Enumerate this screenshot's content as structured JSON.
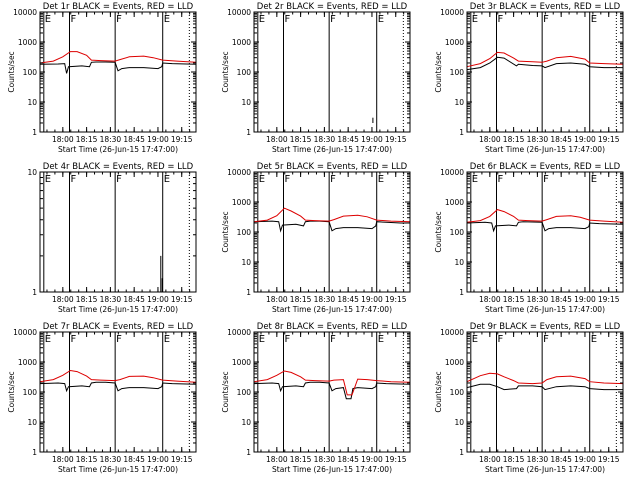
{
  "figure": {
    "colors": {
      "events": "#000000",
      "lld": "#dd0000",
      "axes": "#000000",
      "background": "#ffffff"
    }
  },
  "chart_data": [
    {
      "type": "line",
      "yscale": "log",
      "ylim": [
        1,
        10000
      ],
      "xlim": [
        17.76,
        19.4
      ],
      "title": "Det 1r BLACK = Events, RED = LLD",
      "ylabel": "Counts/sec",
      "xlabel": "Start Time (26-Jun-15 17:47:00)",
      "yticks": [
        "1",
        "10",
        "100",
        "1000",
        "10000"
      ],
      "xticks": [
        "18:00",
        "18:15",
        "18:30",
        "18:45",
        "19:00",
        "19:15"
      ],
      "markers": [
        {
          "t": 17.8,
          "label": "E"
        },
        {
          "t": 18.07,
          "label": "F"
        },
        {
          "t": 18.55,
          "label": "F"
        },
        {
          "t": 19.05,
          "label": "E"
        }
      ],
      "dotted": [
        19.33
      ],
      "series": [
        {
          "name": "BLACK = Events",
          "x": [
            17.76,
            17.95,
            18.02,
            18.04,
            18.06,
            18.2,
            18.28,
            18.3,
            18.35,
            18.45,
            18.55,
            18.58,
            18.62,
            18.7,
            18.85,
            19.0,
            19.04,
            19.05,
            19.15,
            19.3,
            19.4
          ],
          "y": [
            180,
            185,
            190,
            90,
            150,
            160,
            150,
            210,
            215,
            215,
            210,
            110,
            130,
            140,
            140,
            130,
            150,
            200,
            190,
            185,
            180
          ]
        },
        {
          "name": "RED = LLD",
          "x": [
            17.76,
            17.9,
            18.0,
            18.08,
            18.15,
            18.25,
            18.3,
            18.4,
            18.55,
            18.6,
            18.7,
            18.85,
            18.95,
            19.05,
            19.2,
            19.4
          ],
          "y": [
            200,
            230,
            320,
            480,
            480,
            360,
            250,
            240,
            230,
            260,
            320,
            340,
            300,
            250,
            230,
            210
          ]
        }
      ]
    },
    {
      "type": "line",
      "yscale": "log",
      "ylim": [
        1,
        10000
      ],
      "xlim": [
        17.76,
        19.4
      ],
      "title": "Det 2r BLACK = Events, RED = LLD",
      "ylabel": "Counts/sec",
      "xlabel": "Start Time (26-Jun-15 17:47:00)",
      "yticks": [
        "1",
        "10",
        "100",
        "1000",
        "10000"
      ],
      "xticks": [
        "18:00",
        "18:15",
        "18:30",
        "18:45",
        "19:00",
        "19:15"
      ],
      "markers": [
        {
          "t": 17.8,
          "label": "E"
        },
        {
          "t": 18.07,
          "label": "F"
        },
        {
          "t": 18.55,
          "label": "F"
        },
        {
          "t": 19.05,
          "label": "E"
        }
      ],
      "dotted": [
        19.33
      ],
      "series": [
        {
          "name": "BLACK = Events",
          "x": [
            19.01,
            19.01
          ],
          "y": [
            2,
            3
          ]
        }
      ]
    },
    {
      "type": "line",
      "yscale": "log",
      "ylim": [
        1,
        10000
      ],
      "xlim": [
        17.76,
        19.4
      ],
      "title": "Det 3r BLACK = Events, RED = LLD",
      "ylabel": "Counts/sec",
      "xlabel": "Start Time (26-Jun-15 17:47:00)",
      "yticks": [
        "1",
        "10",
        "100",
        "1000",
        "10000"
      ],
      "xticks": [
        "18:00",
        "18:15",
        "18:30",
        "18:45",
        "19:00",
        "19:15"
      ],
      "markers": [
        {
          "t": 17.8,
          "label": "E"
        },
        {
          "t": 18.07,
          "label": "F"
        },
        {
          "t": 18.55,
          "label": "F"
        },
        {
          "t": 19.05,
          "label": "E"
        }
      ],
      "dotted": [
        19.33
      ],
      "series": [
        {
          "name": "BLACK = Events",
          "x": [
            17.76,
            17.9,
            18.0,
            18.08,
            18.15,
            18.28,
            18.3,
            18.45,
            18.55,
            18.58,
            18.7,
            18.85,
            19.0,
            19.05,
            19.2,
            19.4
          ],
          "y": [
            120,
            140,
            200,
            310,
            290,
            160,
            180,
            165,
            160,
            140,
            190,
            200,
            180,
            150,
            140,
            140
          ]
        },
        {
          "name": "RED = LLD",
          "x": [
            17.76,
            17.9,
            18.0,
            18.08,
            18.15,
            18.25,
            18.3,
            18.45,
            18.55,
            18.6,
            18.7,
            18.85,
            19.0,
            19.05,
            19.2,
            19.4
          ],
          "y": [
            150,
            190,
            280,
            450,
            430,
            290,
            230,
            220,
            210,
            230,
            300,
            330,
            270,
            200,
            190,
            180
          ]
        }
      ]
    },
    {
      "type": "line",
      "yscale": "log",
      "ylim": [
        1,
        10
      ],
      "xlim": [
        17.76,
        19.4
      ],
      "title": "Det 4r BLACK = Events, RED = LLD",
      "ylabel": "",
      "xlabel": "Start Time (26-Jun-15 17:47:00)",
      "yticks": [
        "1",
        "10"
      ],
      "xticks": [
        "18:00",
        "18:15",
        "18:30",
        "18:45",
        "19:00",
        "19:15"
      ],
      "markers": [
        {
          "t": 17.8,
          "label": "E"
        },
        {
          "t": 18.07,
          "label": "F"
        },
        {
          "t": 18.55,
          "label": "F"
        },
        {
          "t": 19.05,
          "label": "E"
        }
      ],
      "dotted": [
        19.33
      ],
      "series": [
        {
          "name": "BLACK = Events",
          "x": [
            19.03,
            19.03,
            19.03,
            19.045,
            19.045
          ],
          "y": [
            1,
            2,
            1,
            1,
            1.3
          ]
        }
      ]
    },
    {
      "type": "line",
      "yscale": "log",
      "ylim": [
        1,
        10000
      ],
      "xlim": [
        17.76,
        19.4
      ],
      "title": "Det 5r BLACK = Events, RED = LLD",
      "ylabel": "Counts/sec",
      "xlabel": "Start Time (26-Jun-15 17:47:00)",
      "yticks": [
        "1",
        "10",
        "100",
        "1000",
        "10000"
      ],
      "xticks": [
        "18:00",
        "18:15",
        "18:30",
        "18:45",
        "19:00",
        "19:15"
      ],
      "markers": [
        {
          "t": 17.8,
          "label": "E"
        },
        {
          "t": 18.07,
          "label": "F"
        },
        {
          "t": 18.55,
          "label": "F"
        },
        {
          "t": 19.05,
          "label": "E"
        }
      ],
      "dotted": [
        19.33
      ],
      "series": [
        {
          "name": "BLACK = Events",
          "x": [
            17.76,
            17.95,
            18.02,
            18.04,
            18.06,
            18.2,
            18.28,
            18.3,
            18.35,
            18.45,
            18.55,
            18.58,
            18.62,
            18.7,
            18.85,
            19.0,
            19.04,
            19.05,
            19.15,
            19.3,
            19.4
          ],
          "y": [
            220,
            230,
            220,
            110,
            170,
            180,
            160,
            220,
            230,
            230,
            220,
            110,
            130,
            140,
            140,
            130,
            160,
            220,
            210,
            200,
            200
          ]
        },
        {
          "name": "RED = LLD",
          "x": [
            17.76,
            17.9,
            18.0,
            18.08,
            18.15,
            18.25,
            18.3,
            18.4,
            18.55,
            18.6,
            18.7,
            18.85,
            18.95,
            19.05,
            19.2,
            19.4
          ],
          "y": [
            220,
            250,
            350,
            620,
            500,
            340,
            250,
            240,
            230,
            260,
            340,
            360,
            320,
            250,
            230,
            220
          ]
        }
      ]
    },
    {
      "type": "line",
      "yscale": "log",
      "ylim": [
        1,
        10000
      ],
      "xlim": [
        17.76,
        19.4
      ],
      "title": "Det 6r BLACK = Events, RED = LLD",
      "ylabel": "Counts/sec",
      "xlabel": "Start Time (26-Jun-15 17:47:00)",
      "yticks": [
        "1",
        "10",
        "100",
        "1000",
        "10000"
      ],
      "xticks": [
        "18:00",
        "18:15",
        "18:30",
        "18:45",
        "19:00",
        "19:15"
      ],
      "markers": [
        {
          "t": 17.8,
          "label": "E"
        },
        {
          "t": 18.07,
          "label": "F"
        },
        {
          "t": 18.55,
          "label": "F"
        },
        {
          "t": 19.05,
          "label": "E"
        }
      ],
      "dotted": [
        19.33
      ],
      "series": [
        {
          "name": "BLACK = Events",
          "x": [
            17.76,
            17.95,
            18.02,
            18.04,
            18.06,
            18.2,
            18.28,
            18.3,
            18.35,
            18.45,
            18.55,
            18.58,
            18.62,
            18.7,
            18.85,
            19.0,
            19.04,
            19.05,
            19.15,
            19.3,
            19.4
          ],
          "y": [
            200,
            210,
            200,
            110,
            160,
            170,
            160,
            210,
            220,
            215,
            210,
            110,
            130,
            140,
            140,
            130,
            150,
            200,
            190,
            185,
            180
          ]
        },
        {
          "name": "RED = LLD",
          "x": [
            17.76,
            17.9,
            18.0,
            18.08,
            18.15,
            18.25,
            18.3,
            18.4,
            18.55,
            18.6,
            18.7,
            18.85,
            18.95,
            19.05,
            19.2,
            19.4
          ],
          "y": [
            210,
            240,
            330,
            560,
            480,
            330,
            250,
            240,
            230,
            260,
            330,
            350,
            310,
            250,
            230,
            210
          ]
        }
      ]
    },
    {
      "type": "line",
      "yscale": "log",
      "ylim": [
        1,
        10000
      ],
      "xlim": [
        17.76,
        19.4
      ],
      "title": "Det 7r BLACK = Events, RED = LLD",
      "ylabel": "Counts/sec",
      "xlabel": "Start Time (26-Jun-15 17:47:00)",
      "yticks": [
        "1",
        "10",
        "100",
        "1000",
        "10000"
      ],
      "xticks": [
        "18:00",
        "18:15",
        "18:30",
        "18:45",
        "19:00",
        "19:15"
      ],
      "markers": [
        {
          "t": 17.8,
          "label": "E"
        },
        {
          "t": 18.07,
          "label": "F"
        },
        {
          "t": 18.55,
          "label": "F"
        },
        {
          "t": 19.05,
          "label": "E"
        }
      ],
      "dotted": [
        19.33
      ],
      "series": [
        {
          "name": "BLACK = Events",
          "x": [
            17.76,
            17.95,
            18.02,
            18.04,
            18.06,
            18.2,
            18.28,
            18.3,
            18.35,
            18.45,
            18.55,
            18.58,
            18.62,
            18.7,
            18.85,
            19.0,
            19.04,
            19.05,
            19.15,
            19.3,
            19.4
          ],
          "y": [
            190,
            200,
            190,
            110,
            150,
            160,
            150,
            200,
            210,
            210,
            200,
            110,
            130,
            140,
            140,
            130,
            150,
            200,
            190,
            185,
            180
          ]
        },
        {
          "name": "RED = LLD",
          "x": [
            17.76,
            17.9,
            18.0,
            18.08,
            18.15,
            18.25,
            18.3,
            18.4,
            18.55,
            18.6,
            18.7,
            18.85,
            18.95,
            19.05,
            19.2,
            19.4
          ],
          "y": [
            220,
            260,
            360,
            520,
            480,
            340,
            260,
            250,
            240,
            260,
            330,
            340,
            300,
            250,
            230,
            210
          ]
        }
      ]
    },
    {
      "type": "line",
      "yscale": "log",
      "ylim": [
        1,
        10000
      ],
      "xlim": [
        17.76,
        19.4
      ],
      "title": "Det 8r BLACK = Events, RED = LLD",
      "ylabel": "Counts/sec",
      "xlabel": "Start Time (26-Jun-15 17:47:00)",
      "yticks": [
        "1",
        "10",
        "100",
        "1000",
        "10000"
      ],
      "xticks": [
        "18:00",
        "18:15",
        "18:30",
        "18:45",
        "19:00",
        "19:15"
      ],
      "markers": [
        {
          "t": 17.8,
          "label": "E"
        },
        {
          "t": 18.07,
          "label": "F"
        },
        {
          "t": 18.55,
          "label": "F"
        },
        {
          "t": 19.05,
          "label": "E"
        }
      ],
      "dotted": [
        19.33
      ],
      "series": [
        {
          "name": "BLACK = Events",
          "x": [
            17.76,
            17.95,
            18.02,
            18.04,
            18.06,
            18.2,
            18.28,
            18.3,
            18.35,
            18.45,
            18.55,
            18.58,
            18.62,
            18.7,
            18.73,
            18.78,
            18.8,
            18.85,
            19.0,
            19.04,
            19.05,
            19.15,
            19.3,
            19.4
          ],
          "y": [
            190,
            200,
            190,
            110,
            150,
            160,
            150,
            200,
            210,
            210,
            200,
            110,
            130,
            140,
            60,
            60,
            130,
            140,
            130,
            150,
            200,
            190,
            185,
            180
          ]
        },
        {
          "name": "RED = LLD",
          "x": [
            17.76,
            17.9,
            18.0,
            18.08,
            18.15,
            18.25,
            18.3,
            18.4,
            18.55,
            18.6,
            18.7,
            18.74,
            18.79,
            18.85,
            18.95,
            19.05,
            19.2,
            19.4
          ],
          "y": [
            220,
            260,
            360,
            500,
            450,
            320,
            250,
            240,
            230,
            250,
            260,
            80,
            80,
            270,
            260,
            240,
            220,
            210
          ]
        }
      ]
    },
    {
      "type": "line",
      "yscale": "log",
      "ylim": [
        1,
        10000
      ],
      "xlim": [
        17.76,
        19.4
      ],
      "title": "Det 9r BLACK = Events, RED = LLD",
      "ylabel": "Counts/sec",
      "xlabel": "Start Time (26-Jun-15 17:47:00)",
      "yticks": [
        "1",
        "10",
        "100",
        "1000",
        "10000"
      ],
      "xticks": [
        "18:00",
        "18:15",
        "18:30",
        "18:45",
        "19:00",
        "19:15"
      ],
      "markers": [
        {
          "t": 17.8,
          "label": "E"
        },
        {
          "t": 18.07,
          "label": "F"
        },
        {
          "t": 18.55,
          "label": "F"
        },
        {
          "t": 19.05,
          "label": "E"
        }
      ],
      "dotted": [
        19.33
      ],
      "series": [
        {
          "name": "BLACK = Events",
          "x": [
            17.76,
            17.9,
            18.0,
            18.08,
            18.15,
            18.28,
            18.3,
            18.45,
            18.55,
            18.58,
            18.7,
            18.85,
            19.0,
            19.05,
            19.2,
            19.4
          ],
          "y": [
            140,
            180,
            180,
            150,
            120,
            130,
            160,
            160,
            150,
            120,
            150,
            160,
            150,
            130,
            120,
            120
          ]
        },
        {
          "name": "RED = LLD",
          "x": [
            17.76,
            17.9,
            18.0,
            18.08,
            18.15,
            18.25,
            18.3,
            18.45,
            18.55,
            18.6,
            18.7,
            18.85,
            19.0,
            19.05,
            19.2,
            19.4
          ],
          "y": [
            220,
            350,
            420,
            400,
            320,
            240,
            200,
            190,
            200,
            260,
            320,
            340,
            280,
            220,
            200,
            190
          ]
        }
      ]
    }
  ]
}
